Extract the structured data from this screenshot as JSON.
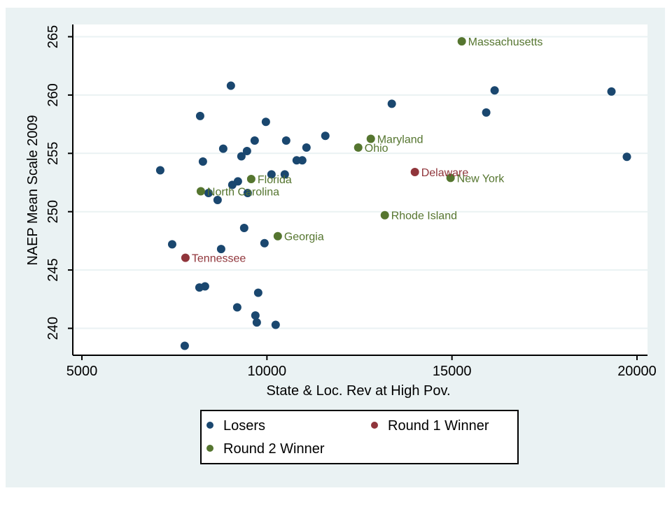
{
  "chart_data": {
    "type": "scatter",
    "title": "",
    "xlabel": "State & Loc. Rev at High Pov.",
    "ylabel": "NAEP Mean Scale 2009",
    "xlim": [
      5000,
      20000
    ],
    "ylim": [
      238,
      266
    ],
    "xticks": [
      "5000",
      "10000",
      "15000",
      "20000"
    ],
    "yticks": [
      "240",
      "245",
      "250",
      "255",
      "260",
      "265"
    ],
    "xtick_values": [
      5000,
      10000,
      15000,
      20000
    ],
    "ytick_values": [
      240,
      245,
      250,
      255,
      260,
      265
    ],
    "grid": "horizontal",
    "legend_placement": "bottom",
    "series": [
      {
        "name": "Losers",
        "color": "#1a476f",
        "points": [
          {
            "x": 7117,
            "y": 253.55
          },
          {
            "x": 7439,
            "y": 247.2
          },
          {
            "x": 7779,
            "y": 238.5
          },
          {
            "x": 8195,
            "y": 258.2
          },
          {
            "x": 8270,
            "y": 254.3
          },
          {
            "x": 8422,
            "y": 251.6
          },
          {
            "x": 8176,
            "y": 243.5
          },
          {
            "x": 8327,
            "y": 243.6
          },
          {
            "x": 8667,
            "y": 251.0
          },
          {
            "x": 8762,
            "y": 246.8
          },
          {
            "x": 8819,
            "y": 255.4
          },
          {
            "x": 9026,
            "y": 260.8
          },
          {
            "x": 9064,
            "y": 252.3
          },
          {
            "x": 9216,
            "y": 252.6
          },
          {
            "x": 9197,
            "y": 241.8
          },
          {
            "x": 9310,
            "y": 254.75
          },
          {
            "x": 9461,
            "y": 255.2
          },
          {
            "x": 9385,
            "y": 248.6
          },
          {
            "x": 9480,
            "y": 251.6
          },
          {
            "x": 9669,
            "y": 256.1
          },
          {
            "x": 9688,
            "y": 241.1
          },
          {
            "x": 9726,
            "y": 240.5
          },
          {
            "x": 9764,
            "y": 243.05
          },
          {
            "x": 9934,
            "y": 247.3
          },
          {
            "x": 9972,
            "y": 257.7
          },
          {
            "x": 10123,
            "y": 253.2
          },
          {
            "x": 10236,
            "y": 240.3
          },
          {
            "x": 10482,
            "y": 253.2
          },
          {
            "x": 10520,
            "y": 256.1
          },
          {
            "x": 10803,
            "y": 254.4
          },
          {
            "x": 10955,
            "y": 254.4
          },
          {
            "x": 11068,
            "y": 255.5
          },
          {
            "x": 11578,
            "y": 256.5
          },
          {
            "x": 13374,
            "y": 259.25
          },
          {
            "x": 15926,
            "y": 258.5
          },
          {
            "x": 16153,
            "y": 260.4
          },
          {
            "x": 19310,
            "y": 260.3
          },
          {
            "x": 19726,
            "y": 254.7
          }
        ]
      },
      {
        "name": "Round 1 Winner",
        "color": "#90353b",
        "points": [
          {
            "x": 13998,
            "y": 253.4,
            "label": "Delaware"
          },
          {
            "x": 7798,
            "y": 246.05,
            "label": "Tennessee"
          }
        ]
      },
      {
        "name": "Round 2 Winner",
        "color": "#55752f",
        "points": [
          {
            "x": 15265,
            "y": 264.6,
            "label": "Massachusetts"
          },
          {
            "x": 12807,
            "y": 256.25,
            "label": "Maryland"
          },
          {
            "x": 12467,
            "y": 255.5,
            "label": "Ohio"
          },
          {
            "x": 9575,
            "y": 252.8,
            "label": "Florida"
          },
          {
            "x": 8214,
            "y": 251.75,
            "label": "North Carolina"
          },
          {
            "x": 10293,
            "y": 247.9,
            "label": "Georgia"
          },
          {
            "x": 13185,
            "y": 249.7,
            "label": "Rhode Island"
          },
          {
            "x": 14962,
            "y": 252.9,
            "label": "New York"
          }
        ]
      }
    ]
  },
  "legend": {
    "items": [
      "Losers",
      "Round 1 Winner",
      "Round 2 Winner"
    ]
  }
}
